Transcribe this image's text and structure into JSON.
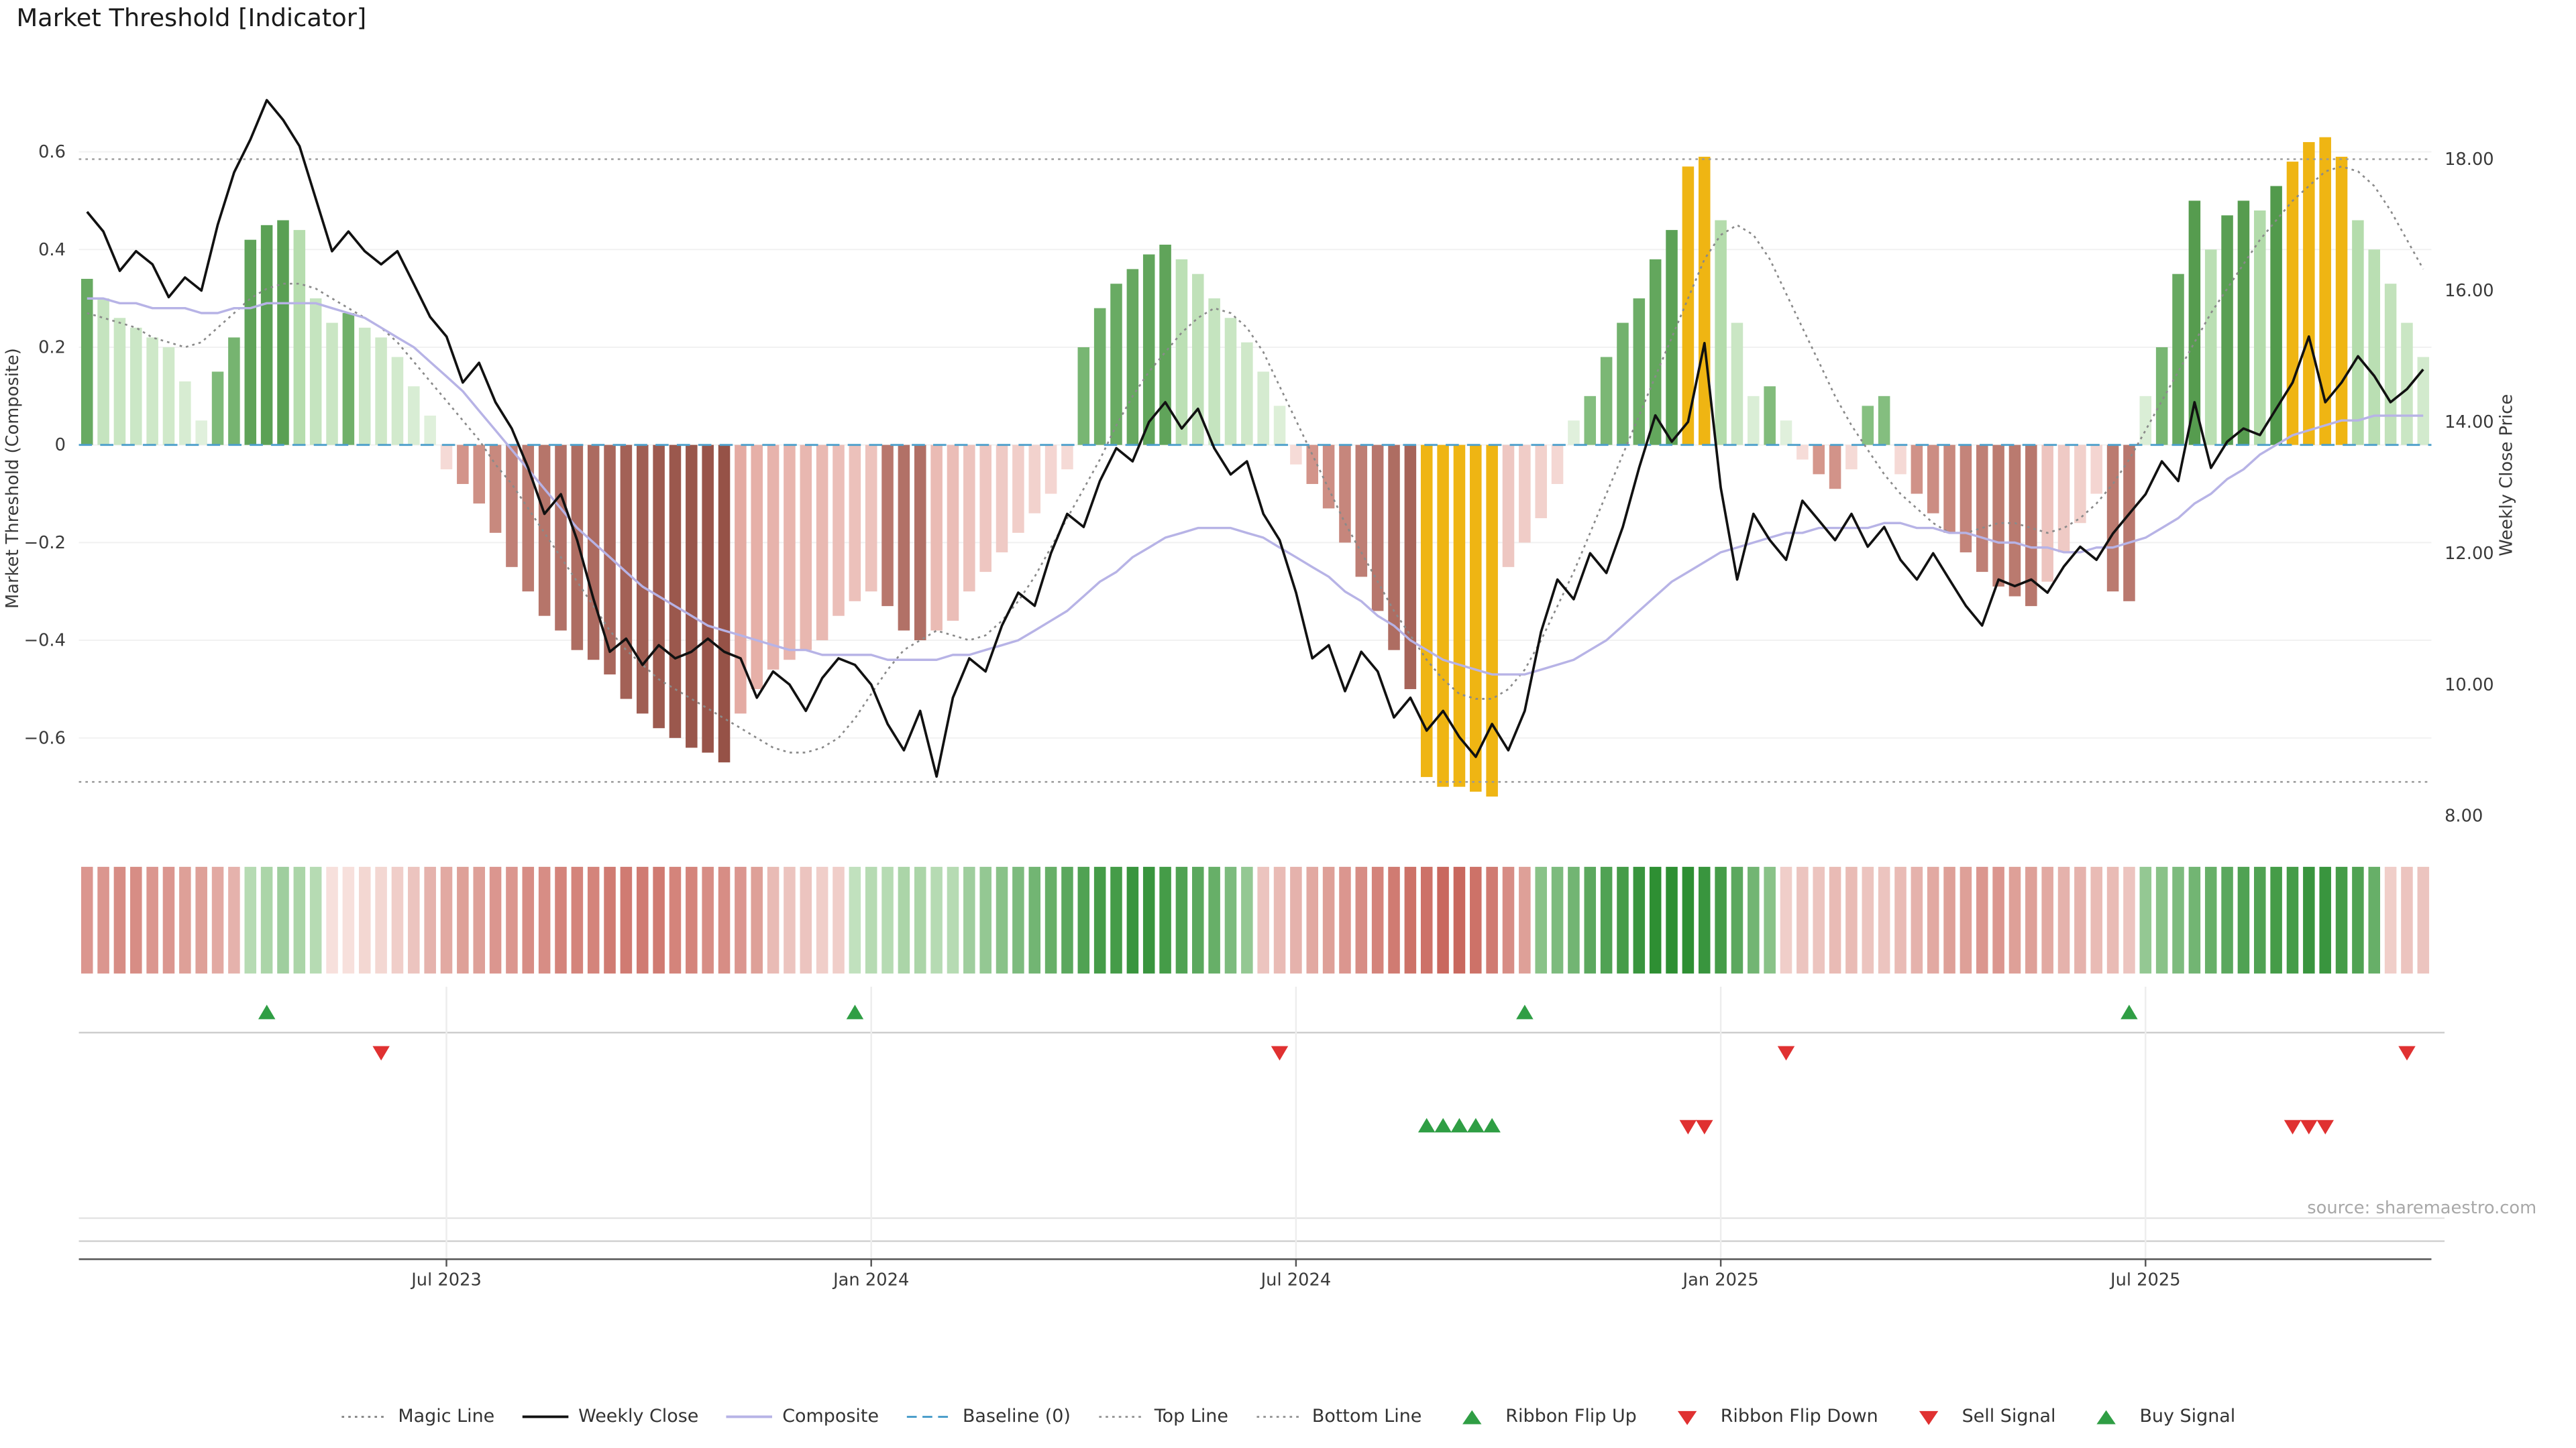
{
  "title": "Market Threshold [Indicator]",
  "source_text": "source: sharemaestro.com",
  "colors": {
    "background": "#ffffff",
    "bar_green_dark": [
      "#8cc487",
      "#3c8a35"
    ],
    "bar_green_light": [
      "#e2f1de",
      "#98cf8e"
    ],
    "bar_red_dark": [
      "#d89a90",
      "#8e4a3f"
    ],
    "bar_red_light": [
      "#f6dcd8",
      "#de9b92"
    ],
    "bar_extreme": "#efb513",
    "ribbon_green": [
      "#d8eed3",
      "#2e8f33"
    ],
    "ribbon_red": [
      "#f7e0dc",
      "#c2564b"
    ],
    "weekly_close": "#111111",
    "composite_line": "#b7b3e6",
    "magic_line": "#8a8a8a",
    "baseline": "#4d9fcb",
    "ref_line": "#999999",
    "grid": "#f1f1f1",
    "flip_up": "#2f9e44",
    "flip_down": "#e03131",
    "sell": "#e03131",
    "buy": "#2f9e44",
    "axis_text": "#3a3a3a",
    "panel_line": "#c9c9c9",
    "panel_line_light": "#e2e2e2"
  },
  "legend": [
    {
      "label": "Magic Line",
      "marker": "dotted-line",
      "color": "#8a8a8a"
    },
    {
      "label": "Weekly Close",
      "marker": "solid-line",
      "color": "#111111"
    },
    {
      "label": "Composite",
      "marker": "solid-line",
      "color": "#b7b3e6"
    },
    {
      "label": "Baseline (0)",
      "marker": "dashed-line",
      "color": "#4d9fcb"
    },
    {
      "label": "Top Line",
      "marker": "dotted-line",
      "color": "#999999"
    },
    {
      "label": "Bottom Line",
      "marker": "dotted-line",
      "color": "#999999"
    },
    {
      "label": "Ribbon Flip Up",
      "marker": "triangle-up",
      "color": "#2f9e44"
    },
    {
      "label": "Ribbon Flip Down",
      "marker": "triangle-down",
      "color": "#e03131"
    },
    {
      "label": "Sell Signal",
      "marker": "triangle-down",
      "color": "#e03131"
    },
    {
      "label": "Buy Signal",
      "marker": "triangle-up",
      "color": "#2f9e44"
    }
  ],
  "chart_data": {
    "type": "combo-bar-line",
    "x_unit": "week",
    "x_ticks": [
      {
        "label": "Jul 2023",
        "i": 22
      },
      {
        "label": "Jan 2024",
        "i": 48
      },
      {
        "label": "Jul 2024",
        "i": 74
      },
      {
        "label": "Jan 2025",
        "i": 100
      },
      {
        "label": "Jul 2025",
        "i": 126
      }
    ],
    "left_axis": {
      "title": "Market Threshold (Composite)",
      "range": [
        -0.75,
        0.72
      ],
      "ticks": [
        {
          "v": 0.6,
          "label": "0.6"
        },
        {
          "v": 0.4,
          "label": "0.4"
        },
        {
          "v": 0.2,
          "label": "0.2"
        },
        {
          "v": 0,
          "label": "0"
        },
        {
          "v": -0.2,
          "label": "−0.2"
        },
        {
          "v": -0.4,
          "label": "−0.4"
        },
        {
          "v": -0.6,
          "label": "−0.6"
        }
      ]
    },
    "right_axis": {
      "title": "Weekly Close Price",
      "range": [
        7.6,
        18.6
      ],
      "ticks": [
        {
          "v": 18,
          "label": "18.00"
        },
        {
          "v": 16,
          "label": "16.00"
        },
        {
          "v": 14,
          "label": "14.00"
        },
        {
          "v": 12,
          "label": "12.00"
        },
        {
          "v": 10,
          "label": "10.00"
        },
        {
          "v": 8,
          "label": "8.00"
        }
      ]
    },
    "top_line": 0.585,
    "bottom_line": -0.69,
    "baseline": 0,
    "threshold": [
      0.34,
      0.3,
      0.26,
      0.24,
      0.22,
      0.2,
      0.13,
      0.05,
      0.15,
      0.22,
      0.42,
      0.45,
      0.46,
      0.44,
      0.3,
      0.25,
      0.27,
      0.24,
      0.22,
      0.18,
      0.12,
      0.06,
      -0.05,
      -0.08,
      -0.12,
      -0.18,
      -0.25,
      -0.3,
      -0.35,
      -0.38,
      -0.42,
      -0.44,
      -0.47,
      -0.52,
      -0.55,
      -0.58,
      -0.6,
      -0.62,
      -0.63,
      -0.65,
      -0.55,
      -0.5,
      -0.46,
      -0.44,
      -0.42,
      -0.4,
      -0.35,
      -0.32,
      -0.3,
      -0.33,
      -0.38,
      -0.4,
      -0.38,
      -0.36,
      -0.3,
      -0.26,
      -0.22,
      -0.18,
      -0.14,
      -0.1,
      -0.05,
      0.2,
      0.28,
      0.33,
      0.36,
      0.39,
      0.41,
      0.38,
      0.35,
      0.3,
      0.26,
      0.21,
      0.15,
      0.08,
      -0.04,
      -0.08,
      -0.13,
      -0.2,
      -0.27,
      -0.34,
      -0.42,
      -0.5,
      -0.68,
      -0.7,
      -0.7,
      -0.71,
      -0.72,
      -0.25,
      -0.2,
      -0.15,
      -0.08,
      0.05,
      0.1,
      0.18,
      0.25,
      0.3,
      0.38,
      0.44,
      0.57,
      0.59,
      0.46,
      0.25,
      0.1,
      0.12,
      0.05,
      -0.03,
      -0.06,
      -0.09,
      -0.05,
      0.08,
      0.1,
      -0.06,
      -0.1,
      -0.14,
      -0.18,
      -0.22,
      -0.26,
      -0.29,
      -0.31,
      -0.33,
      -0.28,
      -0.22,
      -0.16,
      -0.1,
      -0.3,
      -0.32,
      0.1,
      0.2,
      0.35,
      0.5,
      0.4,
      0.47,
      0.5,
      0.48,
      0.53,
      0.58,
      0.62,
      0.63,
      0.59,
      0.46,
      0.4,
      0.33,
      0.25,
      0.18
    ],
    "extreme_bars": [
      82,
      83,
      84,
      85,
      86,
      98,
      99,
      135,
      136,
      137,
      138
    ],
    "weekly_close": [
      17.2,
      16.9,
      16.3,
      16.6,
      16.4,
      15.9,
      16.2,
      16.0,
      17.0,
      17.8,
      18.3,
      18.9,
      18.6,
      18.2,
      17.4,
      16.6,
      16.9,
      16.6,
      16.4,
      16.6,
      16.1,
      15.6,
      15.3,
      14.6,
      14.9,
      14.3,
      13.9,
      13.3,
      12.6,
      12.9,
      12.2,
      11.3,
      10.5,
      10.7,
      10.3,
      10.6,
      10.4,
      10.5,
      10.7,
      10.5,
      10.4,
      9.8,
      10.2,
      10.0,
      9.6,
      10.1,
      10.4,
      10.3,
      10.0,
      9.4,
      9.0,
      9.6,
      8.6,
      9.8,
      10.4,
      10.2,
      10.9,
      11.4,
      11.2,
      12.0,
      12.6,
      12.4,
      13.1,
      13.6,
      13.4,
      14.0,
      14.3,
      13.9,
      14.2,
      13.6,
      13.2,
      13.4,
      12.6,
      12.2,
      11.4,
      10.4,
      10.6,
      9.9,
      10.5,
      10.2,
      9.5,
      9.8,
      9.3,
      9.6,
      9.2,
      8.9,
      9.4,
      9.0,
      9.6,
      10.8,
      11.6,
      11.3,
      12.0,
      11.7,
      12.4,
      13.3,
      14.1,
      13.7,
      14.0,
      15.2,
      13.0,
      11.6,
      12.6,
      12.2,
      11.9,
      12.8,
      12.5,
      12.2,
      12.6,
      12.1,
      12.4,
      11.9,
      11.6,
      12.0,
      11.6,
      11.2,
      10.9,
      11.6,
      11.5,
      11.6,
      11.4,
      11.8,
      12.1,
      11.9,
      12.3,
      12.6,
      12.9,
      13.4,
      13.1,
      14.3,
      13.3,
      13.7,
      13.9,
      13.8,
      14.2,
      14.6,
      15.3,
      14.3,
      14.6,
      15.0,
      14.7,
      14.3,
      14.5,
      14.8
    ],
    "composite": [
      0.3,
      0.3,
      0.29,
      0.29,
      0.28,
      0.28,
      0.28,
      0.27,
      0.27,
      0.28,
      0.28,
      0.29,
      0.29,
      0.29,
      0.29,
      0.28,
      0.27,
      0.26,
      0.24,
      0.22,
      0.2,
      0.17,
      0.14,
      0.11,
      0.07,
      0.03,
      -0.01,
      -0.05,
      -0.09,
      -0.13,
      -0.17,
      -0.2,
      -0.23,
      -0.26,
      -0.29,
      -0.31,
      -0.33,
      -0.35,
      -0.37,
      -0.38,
      -0.39,
      -0.4,
      -0.41,
      -0.42,
      -0.42,
      -0.43,
      -0.43,
      -0.43,
      -0.43,
      -0.44,
      -0.44,
      -0.44,
      -0.44,
      -0.43,
      -0.43,
      -0.42,
      -0.41,
      -0.4,
      -0.38,
      -0.36,
      -0.34,
      -0.31,
      -0.28,
      -0.26,
      -0.23,
      -0.21,
      -0.19,
      -0.18,
      -0.17,
      -0.17,
      -0.17,
      -0.18,
      -0.19,
      -0.21,
      -0.23,
      -0.25,
      -0.27,
      -0.3,
      -0.32,
      -0.35,
      -0.37,
      -0.4,
      -0.42,
      -0.44,
      -0.45,
      -0.46,
      -0.47,
      -0.47,
      -0.47,
      -0.46,
      -0.45,
      -0.44,
      -0.42,
      -0.4,
      -0.37,
      -0.34,
      -0.31,
      -0.28,
      -0.26,
      -0.24,
      -0.22,
      -0.21,
      -0.2,
      -0.19,
      -0.18,
      -0.18,
      -0.17,
      -0.17,
      -0.17,
      -0.17,
      -0.16,
      -0.16,
      -0.17,
      -0.17,
      -0.18,
      -0.18,
      -0.19,
      -0.2,
      -0.2,
      -0.21,
      -0.21,
      -0.22,
      -0.22,
      -0.21,
      -0.21,
      -0.2,
      -0.19,
      -0.17,
      -0.15,
      -0.12,
      -0.1,
      -0.07,
      -0.05,
      -0.02,
      0.0,
      0.02,
      0.03,
      0.04,
      0.05,
      0.05,
      0.06,
      0.06,
      0.06,
      0.06
    ],
    "magic_line": [
      0.27,
      0.26,
      0.25,
      0.24,
      0.22,
      0.21,
      0.2,
      0.21,
      0.24,
      0.27,
      0.3,
      0.32,
      0.33,
      0.33,
      0.32,
      0.3,
      0.28,
      0.26,
      0.24,
      0.21,
      0.17,
      0.13,
      0.09,
      0.05,
      0.01,
      -0.04,
      -0.08,
      -0.13,
      -0.18,
      -0.23,
      -0.28,
      -0.33,
      -0.38,
      -0.42,
      -0.45,
      -0.48,
      -0.5,
      -0.52,
      -0.54,
      -0.56,
      -0.58,
      -0.6,
      -0.62,
      -0.63,
      -0.63,
      -0.62,
      -0.6,
      -0.56,
      -0.51,
      -0.46,
      -0.42,
      -0.4,
      -0.38,
      -0.39,
      -0.4,
      -0.39,
      -0.36,
      -0.32,
      -0.27,
      -0.21,
      -0.15,
      -0.09,
      -0.03,
      0.04,
      0.1,
      0.15,
      0.19,
      0.23,
      0.26,
      0.28,
      0.27,
      0.24,
      0.19,
      0.12,
      0.05,
      -0.02,
      -0.09,
      -0.16,
      -0.22,
      -0.28,
      -0.34,
      -0.39,
      -0.44,
      -0.48,
      -0.51,
      -0.52,
      -0.52,
      -0.5,
      -0.46,
      -0.4,
      -0.33,
      -0.26,
      -0.18,
      -0.1,
      -0.02,
      0.06,
      0.14,
      0.22,
      0.3,
      0.38,
      0.43,
      0.45,
      0.43,
      0.38,
      0.31,
      0.24,
      0.17,
      0.1,
      0.04,
      -0.01,
      -0.06,
      -0.1,
      -0.13,
      -0.16,
      -0.18,
      -0.18,
      -0.17,
      -0.16,
      -0.16,
      -0.17,
      -0.18,
      -0.17,
      -0.15,
      -0.12,
      -0.08,
      -0.03,
      0.03,
      0.09,
      0.15,
      0.21,
      0.27,
      0.32,
      0.37,
      0.42,
      0.46,
      0.5,
      0.53,
      0.56,
      0.57,
      0.56,
      0.53,
      0.48,
      0.42,
      0.36
    ],
    "ribbon": [
      -0.55,
      -0.55,
      -0.6,
      -0.6,
      -0.55,
      -0.55,
      -0.5,
      -0.5,
      -0.45,
      -0.4,
      0.3,
      0.35,
      0.4,
      0.35,
      0.3,
      -0.15,
      -0.15,
      -0.2,
      -0.2,
      -0.25,
      -0.3,
      -0.4,
      -0.45,
      -0.5,
      -0.5,
      -0.55,
      -0.55,
      -0.6,
      -0.6,
      -0.65,
      -0.65,
      -0.65,
      -0.7,
      -0.7,
      -0.7,
      -0.7,
      -0.65,
      -0.65,
      -0.6,
      -0.6,
      -0.55,
      -0.5,
      -0.35,
      -0.3,
      -0.3,
      -0.25,
      -0.25,
      0.25,
      0.3,
      0.3,
      0.35,
      0.35,
      0.3,
      0.3,
      0.4,
      0.45,
      0.5,
      0.55,
      0.6,
      0.65,
      0.7,
      0.75,
      0.8,
      0.8,
      0.85,
      0.85,
      0.8,
      0.75,
      0.7,
      0.65,
      0.55,
      0.45,
      -0.3,
      -0.35,
      -0.4,
      -0.45,
      -0.5,
      -0.55,
      -0.6,
      -0.65,
      -0.7,
      -0.75,
      -0.75,
      -0.8,
      -0.8,
      -0.75,
      -0.7,
      -0.6,
      -0.5,
      0.5,
      0.55,
      0.6,
      0.7,
      0.75,
      0.8,
      0.85,
      0.9,
      0.9,
      0.9,
      0.85,
      0.8,
      0.7,
      0.6,
      0.5,
      -0.25,
      -0.3,
      -0.3,
      -0.35,
      -0.35,
      -0.3,
      -0.3,
      -0.35,
      -0.4,
      -0.45,
      -0.5,
      -0.5,
      -0.55,
      -0.55,
      -0.5,
      -0.5,
      -0.45,
      -0.4,
      -0.4,
      -0.35,
      -0.35,
      -0.3,
      0.45,
      0.5,
      0.55,
      0.6,
      0.65,
      0.7,
      0.75,
      0.75,
      0.8,
      0.8,
      0.85,
      0.85,
      0.8,
      0.75,
      0.65,
      -0.25,
      -0.3,
      -0.3
    ],
    "signals": {
      "ribbon_flip_up": [
        11,
        47,
        88,
        125
      ],
      "ribbon_flip_down": [
        18,
        73,
        104,
        142
      ],
      "buy": [
        82,
        83,
        84,
        85,
        86
      ],
      "sell": [
        98,
        99,
        135,
        136,
        137
      ]
    }
  }
}
